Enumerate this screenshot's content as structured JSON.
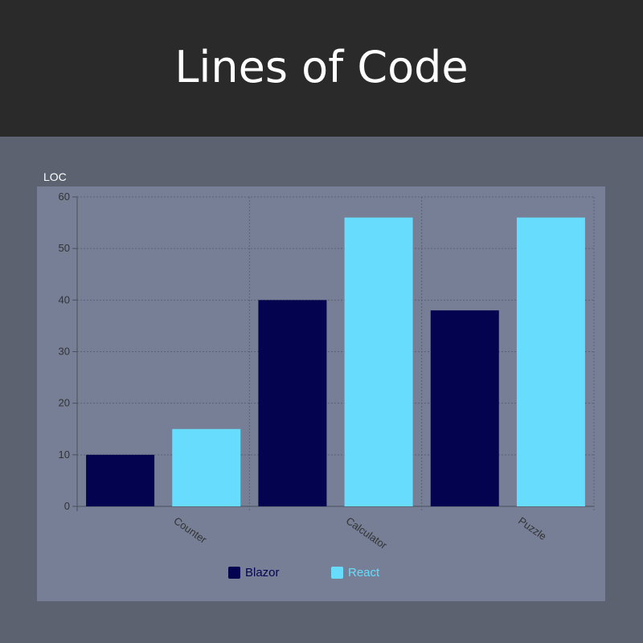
{
  "header": {
    "title": "Lines of Code"
  },
  "chart_data": {
    "type": "bar",
    "ylabel": "LOC",
    "categories": [
      "Counter",
      "Calculator",
      "Puzzle"
    ],
    "series": [
      {
        "name": "Blazor",
        "values": [
          10,
          40,
          38
        ],
        "color": "#04034f"
      },
      {
        "name": "React",
        "values": [
          15,
          56,
          56
        ],
        "color": "#68dcfc"
      }
    ],
    "ylim": [
      0,
      60
    ],
    "yticks": [
      0,
      10,
      20,
      30,
      40,
      50,
      60
    ],
    "grid": true,
    "legend_position": "bottom"
  }
}
